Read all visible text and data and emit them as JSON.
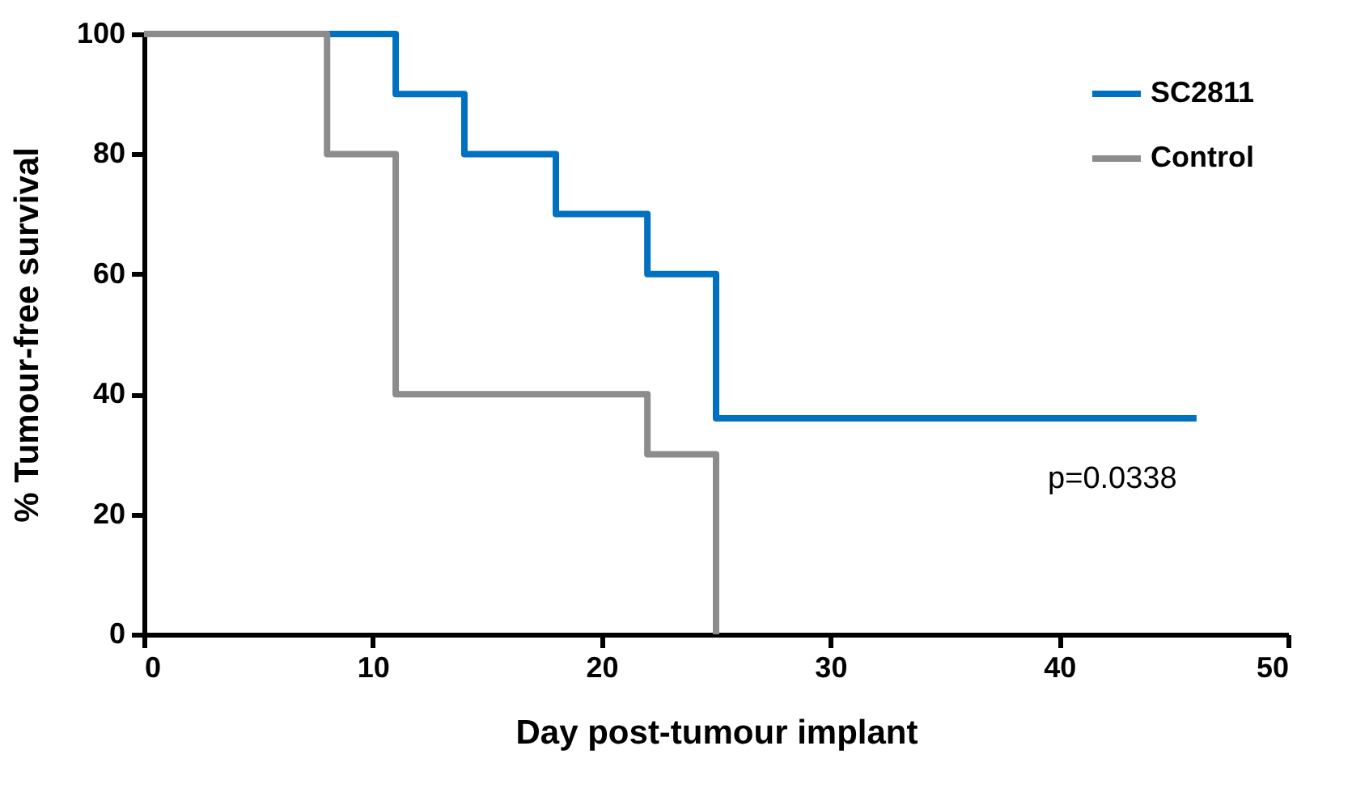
{
  "chart_data": {
    "type": "step",
    "xlabel": "Day post-tumour implant",
    "ylabel": "% Tumour-free survival",
    "series": [
      {
        "name": "SC2811",
        "color": "#0070c0",
        "x": [
          0,
          11,
          14,
          18,
          22,
          25,
          46
        ],
        "values": [
          100,
          90,
          80,
          70,
          60,
          36,
          36
        ]
      },
      {
        "name": "Control",
        "color": "#8c8c8c",
        "x": [
          0,
          8,
          11,
          22,
          25
        ],
        "values": [
          100,
          80,
          40,
          30,
          0
        ]
      }
    ],
    "xlim": [
      0,
      50
    ],
    "xticks": [
      0,
      10,
      20,
      30,
      40,
      50
    ],
    "ylim": [
      0,
      100
    ],
    "yticks": [
      0,
      20,
      40,
      60,
      80,
      100
    ],
    "grid": false,
    "legend": "top right",
    "annotations": [
      "p=0.0338"
    ]
  }
}
